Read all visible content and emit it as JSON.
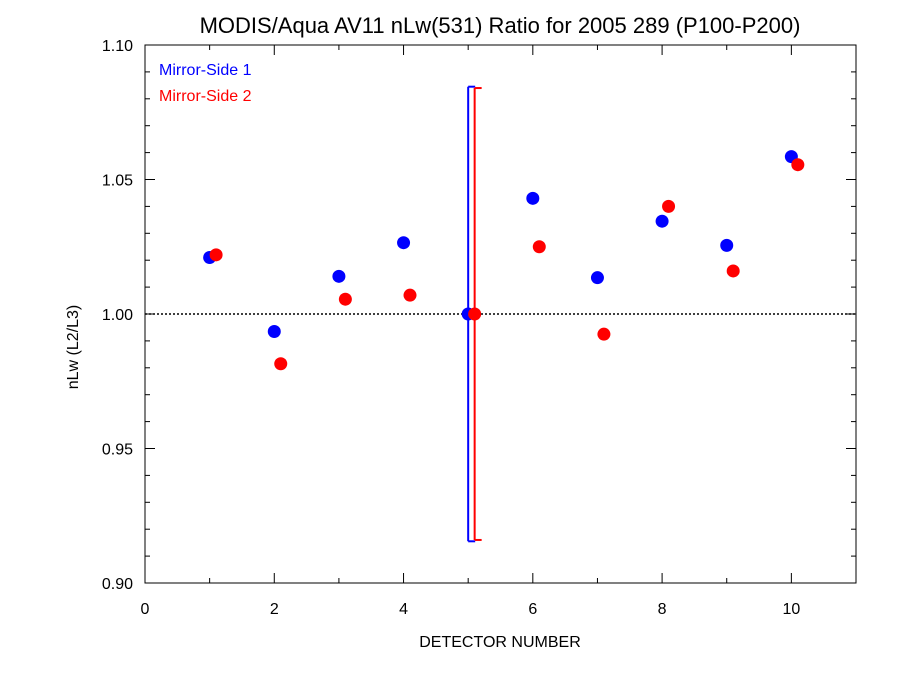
{
  "chart_data": {
    "type": "scatter",
    "title": "MODIS/Aqua AV11 nLw(531) Ratio for 2005 289 (P100-P200)",
    "xlabel": "DETECTOR NUMBER",
    "ylabel": "nLw (L2/L3)",
    "xlim": [
      0,
      11
    ],
    "ylim": [
      0.9,
      1.1
    ],
    "xticks": [
      0,
      2,
      4,
      6,
      8,
      10
    ],
    "xtick_labels": [
      "0",
      "2",
      "4",
      "6",
      "8",
      "10"
    ],
    "yticks": [
      0.9,
      0.95,
      1.0,
      1.05,
      1.1
    ],
    "ytick_labels": [
      "0.90",
      "0.95",
      "1.00",
      "1.05",
      "1.10"
    ],
    "reference_line": 1.0,
    "legend_position": "top-left",
    "series": [
      {
        "name": "Mirror-Side 1",
        "color": "#0000ff",
        "x": [
          1,
          2,
          3,
          4,
          5,
          6,
          7,
          8,
          9,
          10
        ],
        "y": [
          1.021,
          0.9935,
          1.014,
          1.0265,
          1.0,
          1.043,
          1.0135,
          1.0345,
          1.0255,
          1.0585
        ],
        "error_bar": {
          "x": 5,
          "low": 0.9155,
          "high": 1.0845
        }
      },
      {
        "name": "Mirror-Side 2",
        "color": "#ff0000",
        "x": [
          1.1,
          2.1,
          3.1,
          4.1,
          5.1,
          6.1,
          7.1,
          8.1,
          9.1,
          10.1
        ],
        "y": [
          1.022,
          0.9815,
          1.0055,
          1.007,
          1.0,
          1.025,
          0.9925,
          1.04,
          1.016,
          1.0555
        ],
        "error_bar": {
          "x": 5.1,
          "low": 0.916,
          "high": 1.084
        }
      }
    ]
  }
}
